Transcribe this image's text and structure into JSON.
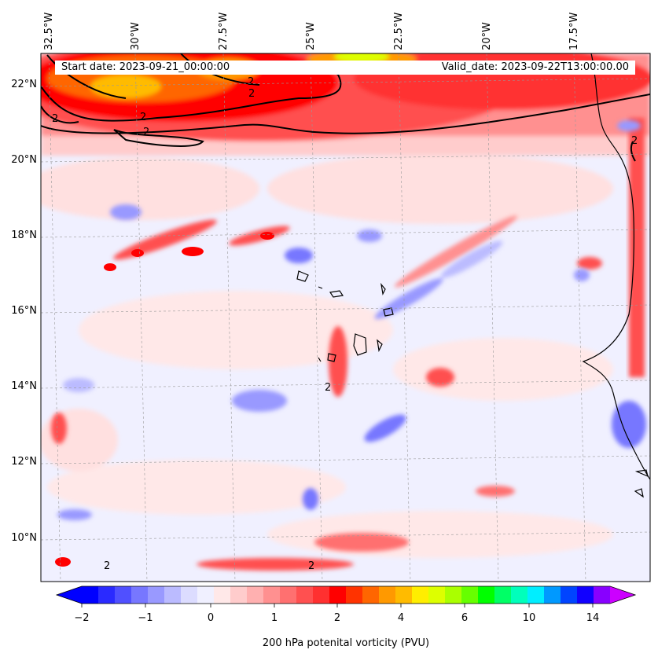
{
  "map": {
    "lon_ticks": [
      "32.5°W",
      "30°W",
      "27.5°W",
      "25°W",
      "22.5°W",
      "20°W",
      "17.5°W"
    ],
    "lat_ticks": [
      "22°N",
      "20°N",
      "18°N",
      "16°N",
      "14°N",
      "12°N",
      "10°N"
    ],
    "start_date": "Start date: 2023-09-21_00:00:00",
    "valid_date": "Valid_date: 2023-09-22T13:00:00.00",
    "contour_label": "2"
  },
  "colorbar": {
    "title": "200 hPa potenital vorticity (PVU)",
    "tick_labels": [
      "−2",
      "−1",
      "0",
      "1",
      "2",
      "4",
      "6",
      "10",
      "14"
    ],
    "colors": [
      "#0000ff",
      "#2a2aff",
      "#5050ff",
      "#7777ff",
      "#9999ff",
      "#bbbbff",
      "#dcdcff",
      "#f0f0ff",
      "#ffe8e8",
      "#ffcccc",
      "#ffb0b0",
      "#ff9090",
      "#ff7070",
      "#ff5050",
      "#ff3030",
      "#ff0000",
      "#ff3300",
      "#ff6600",
      "#ff9900",
      "#ffbb00",
      "#ffee00",
      "#ddff00",
      "#aaff00",
      "#66ff00",
      "#00ff00",
      "#00ff66",
      "#00ffbb",
      "#00eeff",
      "#0099ff",
      "#0044ff",
      "#1100ff",
      "#8800ff"
    ],
    "under_color": "#0000ff",
    "over_color": "#cc00ff"
  },
  "palette": {
    "ocean": "#f0f0ff",
    "land_coast": "#000000"
  }
}
